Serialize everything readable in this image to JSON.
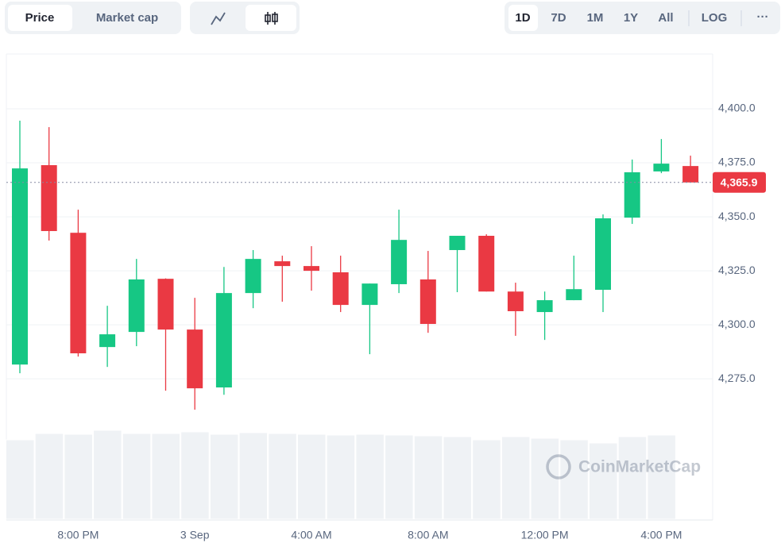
{
  "toolbar": {
    "tabs": [
      "Price",
      "Market cap"
    ],
    "ranges": [
      "1D",
      "7D",
      "1M",
      "1Y",
      "All"
    ],
    "log": "LOG",
    "more": "···"
  },
  "watermark": "CoinMarketCap",
  "chart_data": {
    "type": "candlestick",
    "categories": [
      null,
      null,
      "8:00 PM",
      null,
      null,
      null,
      "3 Sep",
      null,
      null,
      null,
      "4:00 AM",
      null,
      null,
      null,
      "8:00 AM",
      null,
      null,
      null,
      "12:00 PM",
      null,
      null,
      null,
      "4:00 PM",
      null
    ],
    "open": [
      4281.6,
      4373.9,
      4342.6,
      4289.7,
      4296.7,
      4321.3,
      4297.8,
      4271.0,
      4314.7,
      4329.4,
      4327.2,
      4324.3,
      4309.2,
      4318.8,
      4321.0,
      4334.6,
      4341.2,
      4315.4,
      4305.9,
      4311.4,
      4316.2,
      4349.6,
      4371.0,
      4373.5
    ],
    "high": [
      4394.5,
      4391.5,
      4353.3,
      4308.8,
      4330.5,
      4321.5,
      4312.5,
      4326.8,
      4334.6,
      4332.0,
      4336.4,
      4332.0,
      4319.1,
      4353.3,
      4334.2,
      4341.2,
      4341.9,
      4319.5,
      4315.4,
      4332.0,
      4351.1,
      4376.5,
      4386.0,
      4378.3
    ],
    "low": [
      4277.6,
      4339.0,
      4285.3,
      4280.5,
      4290.1,
      4269.5,
      4260.7,
      4267.6,
      4307.7,
      4310.7,
      4315.8,
      4305.9,
      4286.4,
      4314.7,
      4296.3,
      4315.1,
      4315.4,
      4294.9,
      4293.0,
      4311.4,
      4305.9,
      4346.7,
      4370.2,
      4365.9
    ],
    "close": [
      4372.4,
      4343.4,
      4286.8,
      4295.6,
      4321.0,
      4297.8,
      4270.6,
      4314.7,
      4330.5,
      4327.2,
      4325.0,
      4309.2,
      4319.1,
      4339.3,
      4300.4,
      4341.2,
      4315.4,
      4306.3,
      4311.4,
      4316.5,
      4349.3,
      4370.6,
      4374.6,
      4365.9
    ],
    "volume": [
      100,
      108,
      107,
      112,
      108,
      108,
      110,
      107,
      109,
      108,
      107,
      106,
      107,
      106,
      105,
      104,
      100,
      104,
      102,
      100,
      96,
      104,
      106,
      null
    ],
    "up_color": "#16c784",
    "down_color": "#ea3943",
    "volume_color": "#eff2f5",
    "ylim": [
      4210,
      4425
    ],
    "yticks": [
      {
        "value": 4275,
        "label": "4,275.0"
      },
      {
        "value": 4300,
        "label": "4,300.0"
      },
      {
        "value": 4325,
        "label": "4,325.0"
      },
      {
        "value": 4350,
        "label": "4,350.0"
      },
      {
        "value": 4375,
        "label": "4,375.0"
      },
      {
        "value": 4400,
        "label": "4,400.0"
      }
    ],
    "price_label": {
      "value": 4365.9,
      "label": "4,365.9"
    },
    "grid": true
  }
}
